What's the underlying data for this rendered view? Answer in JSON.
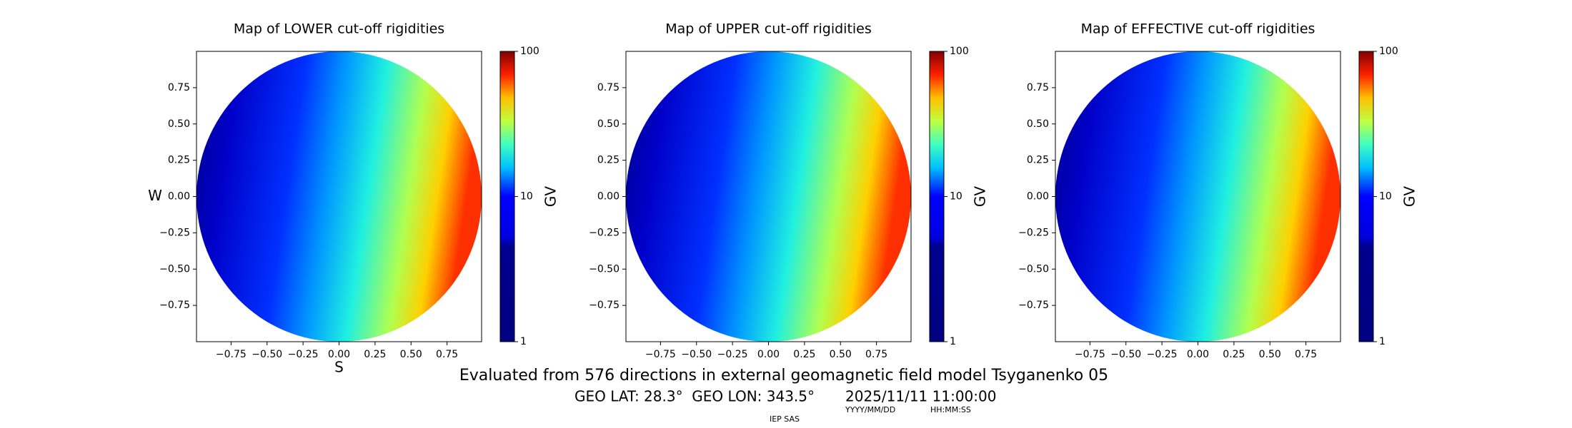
{
  "chart_data": [
    {
      "type": "contour",
      "title": "Map of LOWER cut-off rigidities",
      "xlabel": "S",
      "ylabel": "W",
      "xlim": [
        -0.99,
        0.99
      ],
      "ylim": [
        -1.0,
        1.0
      ],
      "xticks": [
        {
          "value": -0.75,
          "label": "−0.75"
        },
        {
          "value": -0.5,
          "label": "−0.50"
        },
        {
          "value": -0.25,
          "label": "−0.25"
        },
        {
          "value": 0,
          "label": "0.00"
        },
        0.25,
        {
          "value": 0.5,
          "label": "0.50"
        },
        0.75
      ],
      "yticks": [
        {
          "value": -0.75,
          "label": "−0.75"
        },
        {
          "value": -0.5,
          "label": "−0.50"
        },
        {
          "value": -0.25,
          "label": "−0.25"
        },
        {
          "value": 0,
          "label": "0.00"
        },
        0.25,
        {
          "value": 0.5,
          "label": "0.50"
        },
        0.75
      ],
      "colormap": "jet",
      "clim": [
        1,
        100
      ],
      "cticks": [
        1,
        10,
        100
      ],
      "cscale": "log",
      "clabel": "GV"
    },
    {
      "type": "contour",
      "title": "Map of UPPER cut-off rigidities",
      "xlim": [
        -0.99,
        0.99
      ],
      "ylim": [
        -1.0,
        1.0
      ],
      "xticks": [
        {
          "value": -0.75,
          "label": "−0.75"
        },
        {
          "value": -0.5,
          "label": "−0.50"
        },
        {
          "value": -0.25,
          "label": "−0.25"
        },
        {
          "value": 0,
          "label": "0.00"
        },
        0.25,
        {
          "value": 0.5,
          "label": "0.50"
        },
        0.75
      ],
      "yticks": [
        {
          "value": -0.75,
          "label": "−0.75"
        },
        {
          "value": -0.5,
          "label": "−0.50"
        },
        {
          "value": -0.25,
          "label": "−0.25"
        },
        {
          "value": 0,
          "label": "0.00"
        },
        0.25,
        {
          "value": 0.5,
          "label": "0.50"
        },
        0.75
      ],
      "colormap": "jet",
      "clim": [
        1,
        100
      ],
      "cticks": [
        1,
        10,
        100
      ],
      "cscale": "log",
      "clabel": "GV"
    },
    {
      "type": "contour",
      "title": "Map of EFFECTIVE cut-off rigidities",
      "xlim": [
        -0.99,
        0.99
      ],
      "ylim": [
        -1.0,
        1.0
      ],
      "xticks": [
        {
          "value": -0.75,
          "label": "−0.75"
        },
        {
          "value": -0.5,
          "label": "−0.50"
        },
        {
          "value": -0.25,
          "label": "−0.25"
        },
        {
          "value": 0,
          "label": "0.00"
        },
        0.25,
        {
          "value": 0.5,
          "label": "0.50"
        },
        0.75
      ],
      "yticks": [
        {
          "value": -0.75,
          "label": "−0.75"
        },
        {
          "value": -0.5,
          "label": "−0.50"
        },
        {
          "value": -0.25,
          "label": "−0.25"
        },
        {
          "value": 0,
          "label": "0.00"
        },
        0.25,
        {
          "value": 0.5,
          "label": "0.50"
        },
        0.75
      ],
      "colormap": "jet",
      "clim": [
        1,
        100
      ],
      "cticks": [
        1,
        10,
        100
      ],
      "cscale": "log",
      "clabel": "GV"
    }
  ],
  "footer": {
    "caption": "Evaluated from 576 directions in external geomagnetic field model Tsyganenko 05",
    "location": "GEO LAT: 28.3°  GEO LON: 343.5°",
    "datetime": "2025/11/11 11:00:00",
    "date_format": "YYYY/MM/DD",
    "time_format": "HH:MM:SS",
    "credit": "IEP SAS"
  }
}
